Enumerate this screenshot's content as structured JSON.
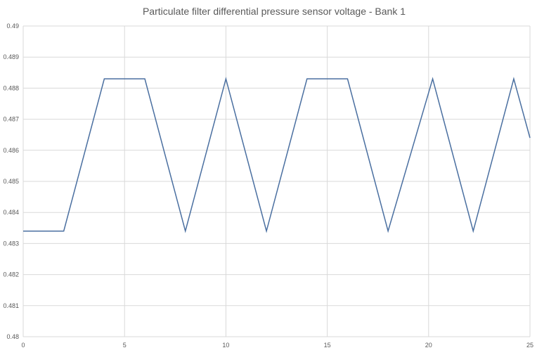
{
  "chart_data": {
    "type": "line",
    "title": "Particulate filter differential pressure sensor voltage  -  Bank 1",
    "xlabel": "",
    "ylabel": "",
    "xlim": [
      0,
      25
    ],
    "ylim": [
      0.48,
      0.49
    ],
    "grid": true,
    "legend": "none",
    "x_ticks": [
      "0",
      "5",
      "10",
      "15",
      "20",
      "25"
    ],
    "y_ticks": [
      "0.48",
      "0.481",
      "0.482",
      "0.483",
      "0.484",
      "0.485",
      "0.486",
      "0.487",
      "0.488",
      "0.489",
      "0.49"
    ],
    "series": [
      {
        "color": "#4a6fa0",
        "x": [
          0,
          2,
          4,
          6,
          8,
          10,
          12,
          14,
          16,
          18,
          20.2,
          22.2,
          24.2,
          25
        ],
        "y": [
          0.4834,
          0.4834,
          0.4883,
          0.4883,
          0.4834,
          0.4883,
          0.4834,
          0.4883,
          0.4883,
          0.4834,
          0.4883,
          0.4834,
          0.4883,
          0.4864
        ]
      }
    ]
  }
}
